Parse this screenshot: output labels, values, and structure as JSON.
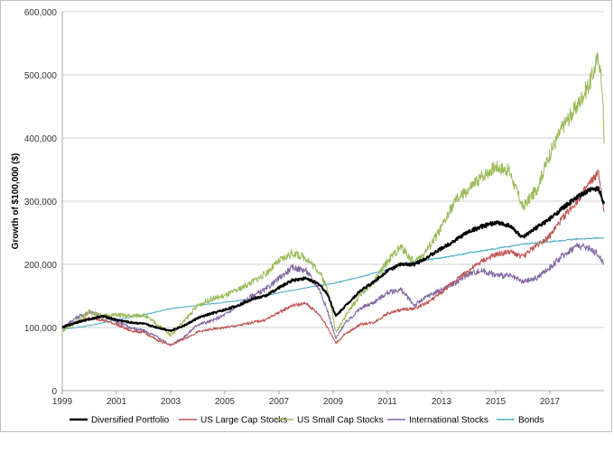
{
  "chart_data": {
    "type": "line",
    "title": "",
    "ylabel": "Growth of $100,000 ($)",
    "xlabel": "",
    "ylim": [
      0,
      600000
    ],
    "xlim": [
      1999,
      2019
    ],
    "y_ticks": [
      "0",
      "100,000",
      "200,000",
      "300,000",
      "400,000",
      "500,000",
      "600,000"
    ],
    "y_tick_values": [
      0,
      100000,
      200000,
      300000,
      400000,
      500000,
      600000
    ],
    "x_ticks": [
      "1999",
      "2001",
      "2003",
      "2005",
      "2007",
      "2009",
      "2011",
      "2013",
      "2015",
      "2017"
    ],
    "x_tick_values": [
      1999,
      2001,
      2003,
      2005,
      2007,
      2009,
      2011,
      2013,
      2015,
      2017
    ],
    "grid": true,
    "legend_position": "bottom",
    "series": [
      {
        "name": "Diversified Portfolio",
        "color": "#000000",
        "points": [
          [
            1999,
            100000
          ],
          [
            1999.5,
            108000
          ],
          [
            2000,
            113000
          ],
          [
            2000.5,
            118000
          ],
          [
            2001,
            112000
          ],
          [
            2001.5,
            108000
          ],
          [
            2002,
            106000
          ],
          [
            2002.5,
            100000
          ],
          [
            2003,
            95000
          ],
          [
            2003.5,
            103000
          ],
          [
            2004,
            115000
          ],
          [
            2004.5,
            122000
          ],
          [
            2005,
            128000
          ],
          [
            2005.5,
            135000
          ],
          [
            2006,
            145000
          ],
          [
            2006.5,
            150000
          ],
          [
            2007,
            163000
          ],
          [
            2007.5,
            175000
          ],
          [
            2008,
            178000
          ],
          [
            2008.5,
            168000
          ],
          [
            2008.8,
            152000
          ],
          [
            2009.1,
            118000
          ],
          [
            2009.4,
            132000
          ],
          [
            2010,
            158000
          ],
          [
            2010.5,
            172000
          ],
          [
            2011,
            190000
          ],
          [
            2011.5,
            200000
          ],
          [
            2012,
            200000
          ],
          [
            2012.5,
            212000
          ],
          [
            2013,
            225000
          ],
          [
            2013.5,
            238000
          ],
          [
            2014,
            252000
          ],
          [
            2014.5,
            260000
          ],
          [
            2015,
            266000
          ],
          [
            2015.5,
            262000
          ],
          [
            2016,
            242000
          ],
          [
            2016.5,
            258000
          ],
          [
            2017,
            272000
          ],
          [
            2017.5,
            290000
          ],
          [
            2018,
            306000
          ],
          [
            2018.5,
            318000
          ],
          [
            2018.8,
            320000
          ],
          [
            2019,
            296000
          ]
        ]
      },
      {
        "name": "US Large Cap Stocks",
        "color": "#c0504d",
        "points": [
          [
            1999,
            100000
          ],
          [
            1999.5,
            108000
          ],
          [
            2000,
            115000
          ],
          [
            2000.5,
            112000
          ],
          [
            2001,
            105000
          ],
          [
            2001.5,
            95000
          ],
          [
            2002,
            92000
          ],
          [
            2002.5,
            80000
          ],
          [
            2003,
            72000
          ],
          [
            2003.5,
            82000
          ],
          [
            2004,
            93000
          ],
          [
            2004.5,
            97000
          ],
          [
            2005,
            100000
          ],
          [
            2005.5,
            103000
          ],
          [
            2006,
            108000
          ],
          [
            2006.5,
            112000
          ],
          [
            2007,
            124000
          ],
          [
            2007.5,
            135000
          ],
          [
            2008,
            138000
          ],
          [
            2008.5,
            120000
          ],
          [
            2008.8,
            100000
          ],
          [
            2009.1,
            75000
          ],
          [
            2009.4,
            88000
          ],
          [
            2010,
            105000
          ],
          [
            2010.5,
            108000
          ],
          [
            2011,
            122000
          ],
          [
            2011.5,
            128000
          ],
          [
            2012,
            130000
          ],
          [
            2012.5,
            140000
          ],
          [
            2013,
            155000
          ],
          [
            2013.5,
            175000
          ],
          [
            2014,
            190000
          ],
          [
            2014.5,
            205000
          ],
          [
            2015,
            215000
          ],
          [
            2015.5,
            220000
          ],
          [
            2016,
            212000
          ],
          [
            2016.5,
            230000
          ],
          [
            2017,
            245000
          ],
          [
            2017.5,
            275000
          ],
          [
            2018,
            300000
          ],
          [
            2018.5,
            330000
          ],
          [
            2018.8,
            345000
          ],
          [
            2019,
            283000
          ]
        ]
      },
      {
        "name": "US Small Cap Stocks",
        "color": "#9bbb59",
        "points": [
          [
            1999,
            95000
          ],
          [
            1999.5,
            108000
          ],
          [
            2000,
            125000
          ],
          [
            2000.5,
            118000
          ],
          [
            2001,
            120000
          ],
          [
            2001.5,
            118000
          ],
          [
            2002,
            120000
          ],
          [
            2002.5,
            105000
          ],
          [
            2003,
            88000
          ],
          [
            2003.5,
            110000
          ],
          [
            2004,
            135000
          ],
          [
            2004.5,
            145000
          ],
          [
            2005,
            150000
          ],
          [
            2005.5,
            160000
          ],
          [
            2006,
            172000
          ],
          [
            2006.5,
            185000
          ],
          [
            2007,
            205000
          ],
          [
            2007.5,
            218000
          ],
          [
            2008,
            210000
          ],
          [
            2008.5,
            188000
          ],
          [
            2008.8,
            160000
          ],
          [
            2009.1,
            92000
          ],
          [
            2009.4,
            115000
          ],
          [
            2010,
            152000
          ],
          [
            2010.5,
            172000
          ],
          [
            2011,
            205000
          ],
          [
            2011.5,
            228000
          ],
          [
            2012,
            202000
          ],
          [
            2012.5,
            225000
          ],
          [
            2013,
            258000
          ],
          [
            2013.5,
            300000
          ],
          [
            2014,
            318000
          ],
          [
            2014.5,
            340000
          ],
          [
            2015,
            355000
          ],
          [
            2015.5,
            348000
          ],
          [
            2016,
            290000
          ],
          [
            2016.5,
            318000
          ],
          [
            2017,
            375000
          ],
          [
            2017.5,
            420000
          ],
          [
            2018,
            450000
          ],
          [
            2018.5,
            490000
          ],
          [
            2018.8,
            530000
          ],
          [
            2018.95,
            470000
          ],
          [
            2019,
            392000
          ]
        ]
      },
      {
        "name": "International Stocks",
        "color": "#8064a2",
        "points": [
          [
            1999,
            100000
          ],
          [
            1999.5,
            115000
          ],
          [
            2000,
            125000
          ],
          [
            2000.5,
            117000
          ],
          [
            2001,
            110000
          ],
          [
            2001.5,
            100000
          ],
          [
            2002,
            95000
          ],
          [
            2002.5,
            85000
          ],
          [
            2003,
            72000
          ],
          [
            2003.5,
            85000
          ],
          [
            2004,
            105000
          ],
          [
            2004.5,
            110000
          ],
          [
            2005,
            120000
          ],
          [
            2005.5,
            135000
          ],
          [
            2006,
            150000
          ],
          [
            2006.5,
            160000
          ],
          [
            2007,
            178000
          ],
          [
            2007.5,
            195000
          ],
          [
            2008,
            190000
          ],
          [
            2008.5,
            160000
          ],
          [
            2008.8,
            125000
          ],
          [
            2009.1,
            82000
          ],
          [
            2009.4,
            105000
          ],
          [
            2010,
            130000
          ],
          [
            2010.5,
            140000
          ],
          [
            2011,
            155000
          ],
          [
            2011.5,
            160000
          ],
          [
            2012,
            135000
          ],
          [
            2012.5,
            150000
          ],
          [
            2013,
            160000
          ],
          [
            2013.5,
            170000
          ],
          [
            2014,
            185000
          ],
          [
            2014.5,
            190000
          ],
          [
            2015,
            183000
          ],
          [
            2015.5,
            182000
          ],
          [
            2016,
            172000
          ],
          [
            2016.5,
            178000
          ],
          [
            2017,
            195000
          ],
          [
            2017.5,
            215000
          ],
          [
            2018,
            230000
          ],
          [
            2018.5,
            225000
          ],
          [
            2018.8,
            215000
          ],
          [
            2019,
            200000
          ]
        ]
      },
      {
        "name": "Bonds",
        "color": "#4bacc6",
        "points": [
          [
            1999,
            97000
          ],
          [
            2000,
            103000
          ],
          [
            2001,
            112000
          ],
          [
            2002,
            120000
          ],
          [
            2003,
            130000
          ],
          [
            2004,
            135000
          ],
          [
            2005,
            140000
          ],
          [
            2006,
            145000
          ],
          [
            2007,
            155000
          ],
          [
            2008,
            163000
          ],
          [
            2009,
            170000
          ],
          [
            2010,
            180000
          ],
          [
            2011,
            192000
          ],
          [
            2012,
            205000
          ],
          [
            2013,
            210000
          ],
          [
            2014,
            218000
          ],
          [
            2015,
            225000
          ],
          [
            2016,
            232000
          ],
          [
            2017,
            236000
          ],
          [
            2018,
            240000
          ],
          [
            2019,
            242000
          ]
        ]
      }
    ]
  }
}
